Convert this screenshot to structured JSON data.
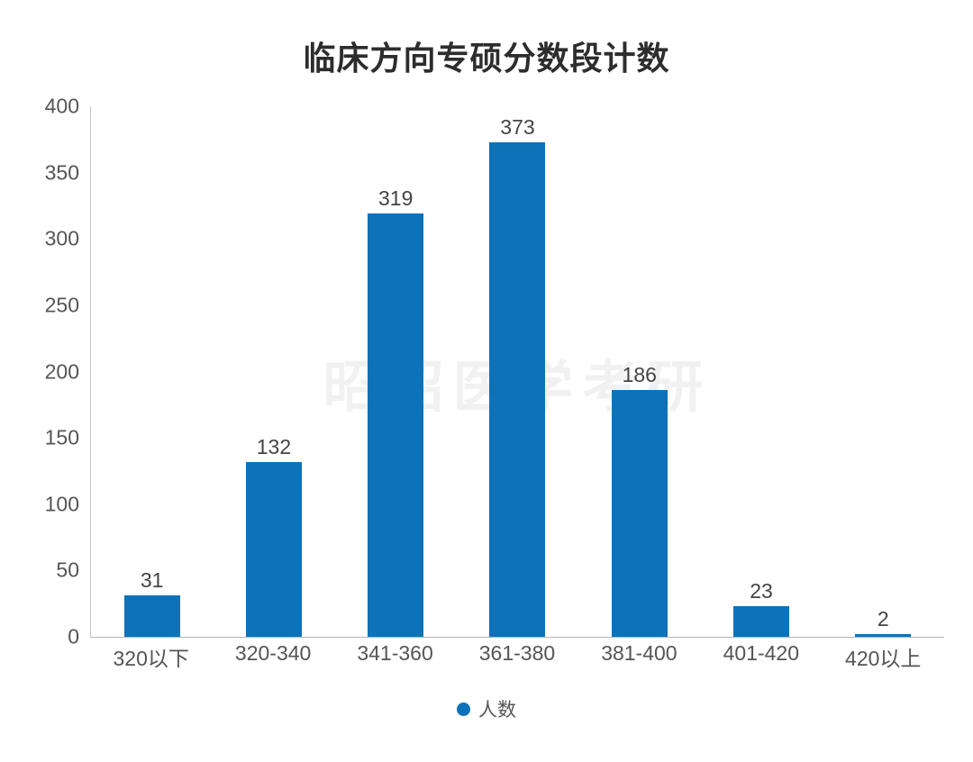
{
  "chart": {
    "title": "临床方向专硕分数段计数",
    "watermark": "昭昭医学考研",
    "legend_label": "人数"
  },
  "chart_data": {
    "type": "bar",
    "title": "临床方向专硕分数段计数",
    "categories": [
      "320以下",
      "320-340",
      "341-360",
      "361-380",
      "381-400",
      "401-420",
      "420以上"
    ],
    "series": [
      {
        "name": "人数",
        "values": [
          31,
          132,
          319,
          373,
          186,
          23,
          2
        ]
      }
    ],
    "values": [
      31,
      132,
      319,
      373,
      186,
      23,
      2
    ],
    "xlabel": "",
    "ylabel": "",
    "ylim": [
      0,
      400
    ],
    "yticks": [
      0,
      50,
      100,
      150,
      200,
      250,
      300,
      350,
      400
    ],
    "grid": false,
    "legend_position": "bottom",
    "bar_color": "#0e72b9",
    "watermark_text": "昭昭医学考研"
  }
}
